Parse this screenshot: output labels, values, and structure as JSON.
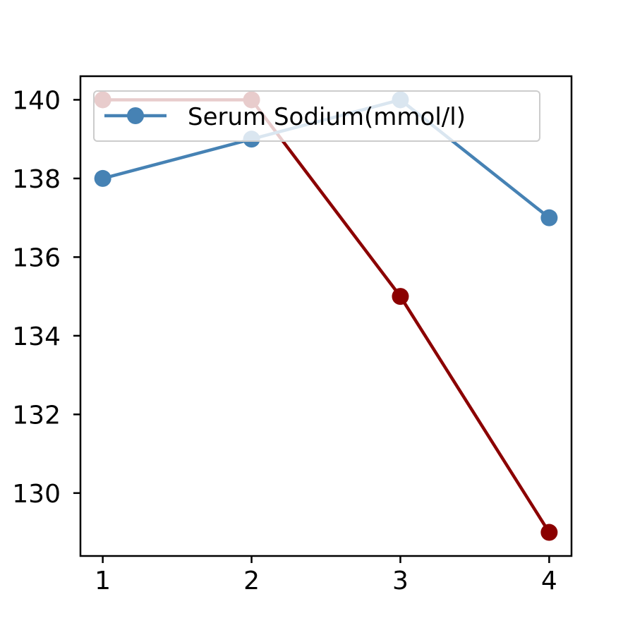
{
  "chart_data": {
    "type": "line",
    "title": "",
    "xlabel": "",
    "ylabel": "",
    "x": [
      1,
      2,
      3,
      4
    ],
    "xlim": [
      0.85,
      4.15
    ],
    "ylim": [
      128.4,
      140.6
    ],
    "xticks": [
      "1",
      "2",
      "3",
      "4"
    ],
    "yticks": [
      "130",
      "132",
      "134",
      "136",
      "138",
      "140"
    ],
    "grid": false,
    "legend": {
      "placement": "upper-right",
      "entries": [
        "Serum Sodium(mmol/l)"
      ]
    },
    "series": [
      {
        "name": "Serum Sodium(mmol/l)",
        "values": [
          138,
          139,
          140,
          137
        ],
        "color": "#4682b4",
        "marker": "circle",
        "in_legend": true
      },
      {
        "values": [
          140,
          140,
          135,
          129
        ],
        "color": "#8b0000",
        "marker": "circle",
        "in_legend": false
      }
    ]
  }
}
